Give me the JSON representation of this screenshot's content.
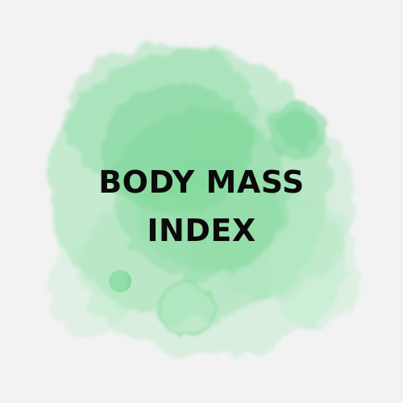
{
  "graphic": {
    "title_line1": "BODY MASS",
    "title_line2": "INDEX"
  },
  "colors": {
    "background": "#f2f2f2",
    "watercolor": "#7ed99a",
    "text": "#0b0b0b"
  }
}
